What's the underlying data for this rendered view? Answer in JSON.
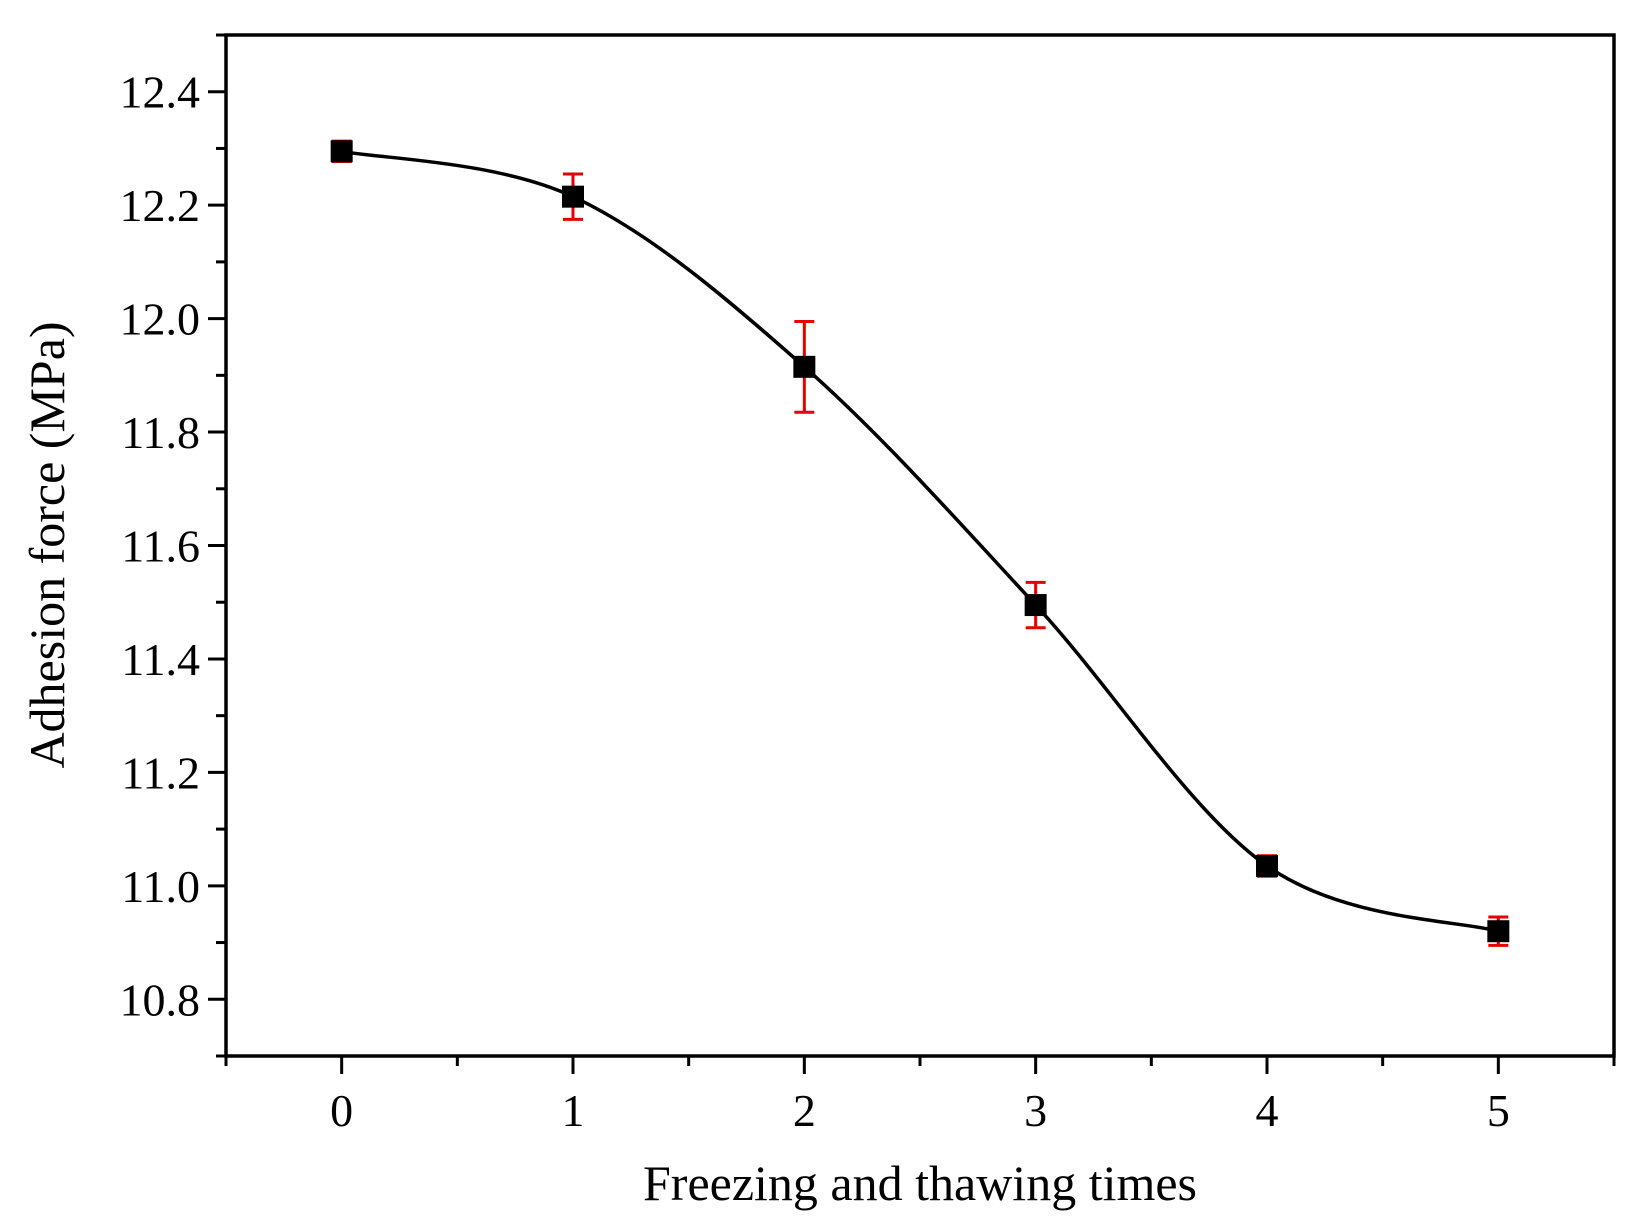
{
  "chart_data": {
    "type": "scatter",
    "title": "",
    "xlabel": "Freezing and thawing times",
    "ylabel": "Adhesion force (MPa)",
    "xlim": [
      -0.5,
      5.5
    ],
    "ylim": [
      10.7,
      12.5
    ],
    "xticks": [
      0,
      1,
      2,
      3,
      4,
      5
    ],
    "xtick_labels": [
      "0",
      "1",
      "2",
      "3",
      "4",
      "5"
    ],
    "yticks": [
      10.8,
      11.0,
      11.2,
      11.4,
      11.6,
      11.8,
      12.0,
      12.2,
      12.4
    ],
    "ytick_labels": [
      "10.8",
      "11.0",
      "11.2",
      "11.4",
      "11.6",
      "11.8",
      "12.0",
      "12.2",
      "12.4"
    ],
    "grid": false,
    "legend": false,
    "series": [
      {
        "name": "Adhesion force",
        "x": [
          0,
          1,
          2,
          3,
          4,
          5
        ],
        "y": [
          12.295,
          12.215,
          11.915,
          11.495,
          11.035,
          10.92
        ],
        "error": [
          0.018,
          0.04,
          0.08,
          0.04,
          0.018,
          0.025
        ],
        "marker": "square",
        "marker_color": "#000000",
        "error_color": "#e60000",
        "line": "smooth-spline",
        "line_color": "#000000"
      }
    ]
  }
}
